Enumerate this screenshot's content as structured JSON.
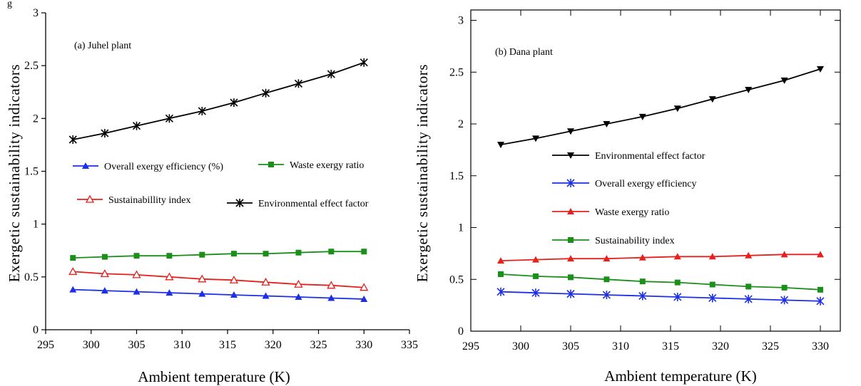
{
  "top_fragment": "g",
  "chart_data": [
    {
      "type": "line",
      "title": "(a) Juhel plant",
      "xlabel": "Ambient temperature (K)",
      "ylabel": "Exergetic sustainability indicators",
      "xlim": [
        295,
        335
      ],
      "ylim": [
        0,
        3
      ],
      "xticks": [
        295,
        300,
        305,
        310,
        315,
        320,
        325,
        330,
        335
      ],
      "yticks": [
        0,
        0.5,
        1,
        1.5,
        2,
        2.5,
        3
      ],
      "ytick_labels": [
        "0",
        "0.5",
        "1",
        "1.5",
        "2",
        "2.5",
        "3"
      ],
      "grid": false,
      "x": [
        298,
        301.5,
        305,
        308.6,
        312.2,
        315.7,
        319.2,
        322.8,
        326.4,
        330
      ],
      "series": [
        {
          "name": "Environmental effect factor",
          "color": "#000000",
          "marker": "x-cross",
          "values": [
            1.8,
            1.86,
            1.93,
            2.0,
            2.07,
            2.15,
            2.24,
            2.33,
            2.42,
            2.53
          ]
        },
        {
          "name": "Waste exergy ratio",
          "color": "#1a8f1a",
          "marker": "square",
          "values": [
            0.68,
            0.69,
            0.7,
            0.7,
            0.71,
            0.72,
            0.72,
            0.73,
            0.74,
            0.74
          ]
        },
        {
          "name": "Sustainabillity index",
          "color": "#e8201c",
          "marker": "triangle-open",
          "values": [
            0.55,
            0.53,
            0.52,
            0.5,
            0.48,
            0.47,
            0.45,
            0.43,
            0.42,
            0.4
          ]
        },
        {
          "name": "Overall exergy efficiency (%)",
          "color": "#1c2ee8",
          "marker": "triangle-filled",
          "values": [
            0.38,
            0.37,
            0.36,
            0.35,
            0.34,
            0.33,
            0.32,
            0.31,
            0.3,
            0.29
          ]
        }
      ],
      "legend": {
        "placement": "middle",
        "order": [
          "Overall exergy efficiency (%)",
          "Waste exergy ratio",
          "Sustainabillity index",
          "Environmental effect factor"
        ]
      }
    },
    {
      "type": "line",
      "title": "(b)  Dana plant",
      "xlabel": "Ambient temperature (K)",
      "ylabel": "Exergetic sustainability indicators",
      "xlim": [
        295,
        332
      ],
      "ylim": [
        0,
        3.1
      ],
      "xticks": [
        295,
        300,
        305,
        310,
        315,
        320,
        325,
        330
      ],
      "yticks": [
        0,
        0.5,
        1,
        1.5,
        2,
        2.5,
        3
      ],
      "ytick_labels": [
        "0",
        "0.5",
        "1",
        "1.5",
        "2",
        "2.5",
        "3"
      ],
      "grid": false,
      "x": [
        298,
        301.5,
        305,
        308.6,
        312.2,
        315.7,
        319.2,
        322.8,
        326.4,
        330
      ],
      "series": [
        {
          "name": "Environmental effect factor",
          "color": "#000000",
          "marker": "triangle-down",
          "values": [
            1.8,
            1.86,
            1.93,
            2.0,
            2.07,
            2.15,
            2.24,
            2.33,
            2.42,
            2.53
          ]
        },
        {
          "name": "Waste exergy ratio",
          "color": "#e8201c",
          "marker": "triangle-filled",
          "values": [
            0.68,
            0.69,
            0.7,
            0.7,
            0.71,
            0.72,
            0.72,
            0.73,
            0.74,
            0.74
          ]
        },
        {
          "name": "Sustainability index",
          "color": "#1a8f1a",
          "marker": "square",
          "values": [
            0.55,
            0.53,
            0.52,
            0.5,
            0.48,
            0.47,
            0.45,
            0.43,
            0.42,
            0.4
          ]
        },
        {
          "name": "Overall exergy efficiency",
          "color": "#1c2ee8",
          "marker": "x-cross",
          "values": [
            0.38,
            0.37,
            0.36,
            0.35,
            0.34,
            0.33,
            0.32,
            0.31,
            0.3,
            0.29
          ]
        }
      ],
      "legend": {
        "placement": "upper-middle",
        "order": [
          "Environmental effect factor",
          "Overall exergy efficiency",
          "Waste exergy ratio",
          "Sustainability index"
        ]
      }
    }
  ]
}
